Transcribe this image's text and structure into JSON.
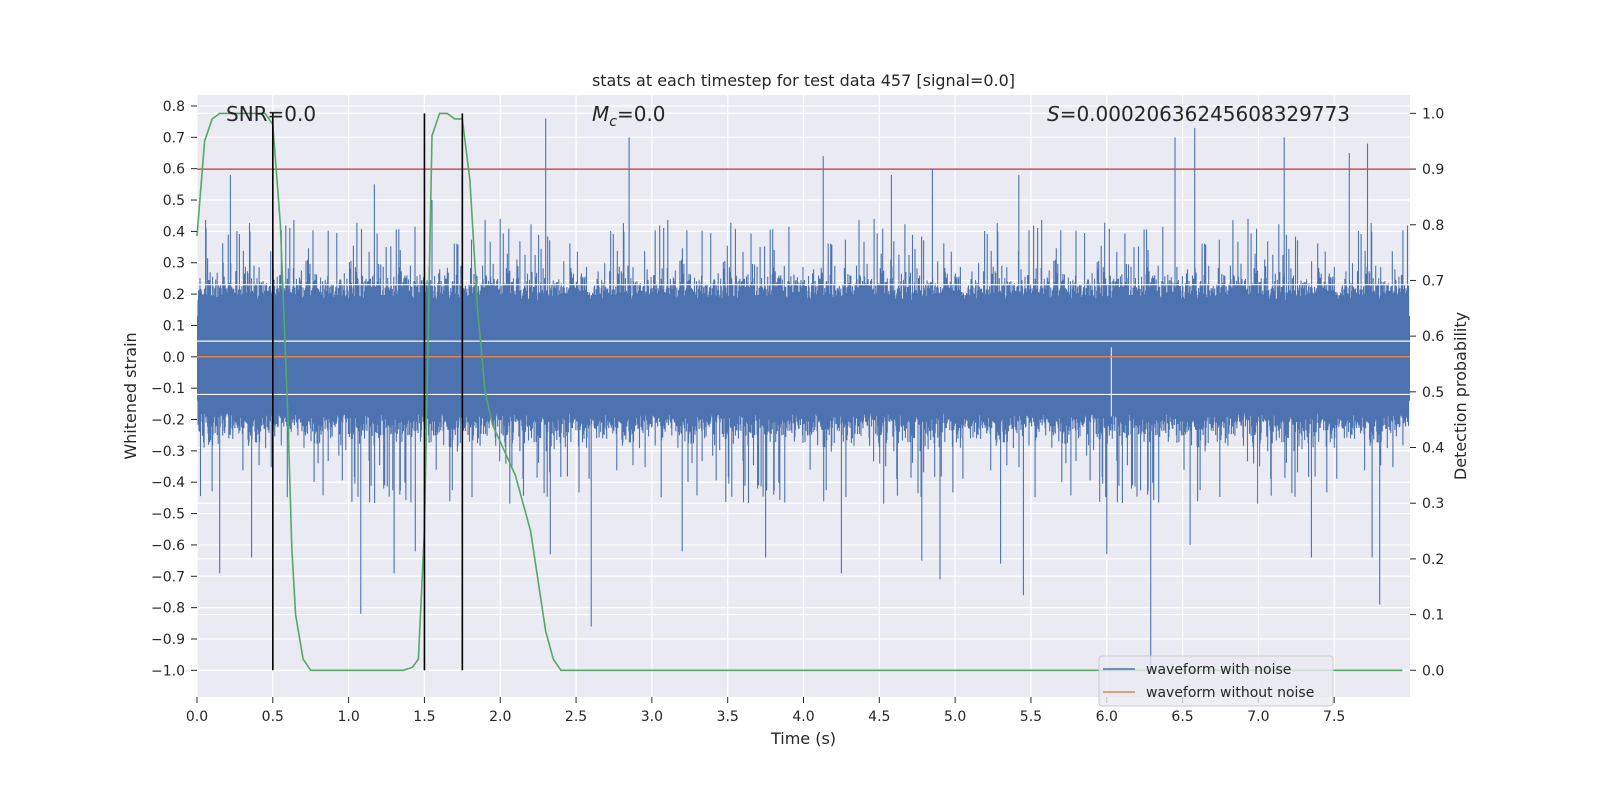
{
  "chart_data": {
    "type": "line",
    "title": "stats at each timestep for test data 457 [signal=0.0]",
    "xlabel": "Time (s)",
    "ylabel": "Whitened strain",
    "y2label": "Detection probability",
    "xlim": [
      0.0,
      8.0
    ],
    "ylim": [
      -1.085,
      0.835
    ],
    "y2lim": [
      -0.048,
      1.033
    ],
    "x_ticks": [
      "0.0",
      "0.5",
      "1.0",
      "1.5",
      "2.0",
      "2.5",
      "3.0",
      "3.5",
      "4.0",
      "4.5",
      "5.0",
      "5.5",
      "6.0",
      "6.5",
      "7.0",
      "7.5"
    ],
    "y_ticks": [
      "0.8",
      "0.7",
      "0.6",
      "0.5",
      "0.4",
      "0.3",
      "0.2",
      "0.1",
      "0.0",
      "−0.1",
      "−0.2",
      "−0.3",
      "−0.4",
      "−0.5",
      "−0.6",
      "−0.7",
      "−0.8",
      "−0.9",
      "−1.0"
    ],
    "y2_ticks": [
      "1.0",
      "0.9",
      "0.8",
      "0.7",
      "0.6",
      "0.5",
      "0.4",
      "0.3",
      "0.2",
      "0.1",
      "0.0"
    ],
    "grid": true,
    "legend_position": "lower-right",
    "annotations": {
      "snr": "SNR=0.0",
      "mc_symbol": "M",
      "mc_sub": "c",
      "mc_value": "=0.0",
      "s_symbol": "S",
      "s_value": "=0.00020636245608329773"
    },
    "series": [
      {
        "name": "waveform with noise",
        "color": "#4c72b0",
        "kind": "noise",
        "envelope_typical": [
          -0.33,
          0.32
        ],
        "spikes": [
          {
            "x": 0.15,
            "y": -0.69
          },
          {
            "x": 0.22,
            "y": 0.58
          },
          {
            "x": 0.36,
            "y": -0.64
          },
          {
            "x": 1.08,
            "y": -0.82
          },
          {
            "x": 1.17,
            "y": 0.55
          },
          {
            "x": 1.3,
            "y": -0.69
          },
          {
            "x": 1.44,
            "y": -0.62
          },
          {
            "x": 1.55,
            "y": 0.5
          },
          {
            "x": 2.3,
            "y": 0.76
          },
          {
            "x": 2.33,
            "y": -0.63
          },
          {
            "x": 2.6,
            "y": -0.86
          },
          {
            "x": 2.85,
            "y": 0.7
          },
          {
            "x": 3.2,
            "y": -0.62
          },
          {
            "x": 3.75,
            "y": -0.64
          },
          {
            "x": 4.13,
            "y": 0.64
          },
          {
            "x": 4.25,
            "y": -0.69
          },
          {
            "x": 4.58,
            "y": 0.58
          },
          {
            "x": 4.78,
            "y": -0.65
          },
          {
            "x": 4.9,
            "y": -0.71
          },
          {
            "x": 4.85,
            "y": 0.6
          },
          {
            "x": 5.3,
            "y": -0.66
          },
          {
            "x": 5.42,
            "y": 0.58
          },
          {
            "x": 5.45,
            "y": -0.76
          },
          {
            "x": 6.0,
            "y": -0.63
          },
          {
            "x": 6.29,
            "y": -1.0
          },
          {
            "x": 6.45,
            "y": 0.7
          },
          {
            "x": 6.58,
            "y": 0.73
          },
          {
            "x": 6.55,
            "y": -0.6
          },
          {
            "x": 7.17,
            "y": 0.7
          },
          {
            "x": 7.35,
            "y": -0.64
          },
          {
            "x": 7.6,
            "y": 0.65
          },
          {
            "x": 7.72,
            "y": 0.68
          },
          {
            "x": 7.75,
            "y": -0.64
          },
          {
            "x": 7.8,
            "y": -0.79
          }
        ]
      },
      {
        "name": "waveform without noise",
        "color": "#dd8452",
        "x": [
          0.0,
          8.0
        ],
        "y": [
          0.0,
          0.0
        ]
      },
      {
        "color": "#55a868",
        "axis": "y2",
        "x": [
          0.0,
          0.05,
          0.1,
          0.15,
          0.2,
          0.3,
          0.4,
          0.45,
          0.5,
          0.55,
          0.6,
          0.625,
          0.65,
          0.7,
          0.75,
          0.8,
          1.0,
          1.2,
          1.3,
          1.36,
          1.42,
          1.46,
          1.5,
          1.55,
          1.6,
          1.65,
          1.7,
          1.75,
          1.8,
          1.85,
          1.9,
          1.95,
          2.0,
          2.1,
          2.2,
          2.3,
          2.35,
          2.4,
          2.5,
          3.0,
          4.0,
          5.0,
          6.0,
          7.0,
          7.95
        ],
        "y": [
          0.78,
          0.95,
          0.99,
          1.0,
          1.0,
          1.0,
          1.0,
          1.0,
          0.98,
          0.8,
          0.45,
          0.22,
          0.1,
          0.02,
          0.0,
          0.0,
          0.0,
          0.0,
          0.0,
          0.0,
          0.005,
          0.02,
          0.25,
          0.96,
          1.0,
          1.0,
          0.99,
          0.99,
          0.88,
          0.65,
          0.5,
          0.44,
          0.41,
          0.35,
          0.25,
          0.07,
          0.02,
          0.0,
          0.0,
          0.0,
          0.0,
          0.0,
          0.0,
          0.0,
          0.0
        ]
      },
      {
        "color": "#c44e52",
        "axis": "y2",
        "x": [
          0.0,
          8.0
        ],
        "y": [
          0.9,
          0.9
        ]
      }
    ],
    "vertical_lines": [
      0.5,
      1.5,
      1.75
    ]
  }
}
